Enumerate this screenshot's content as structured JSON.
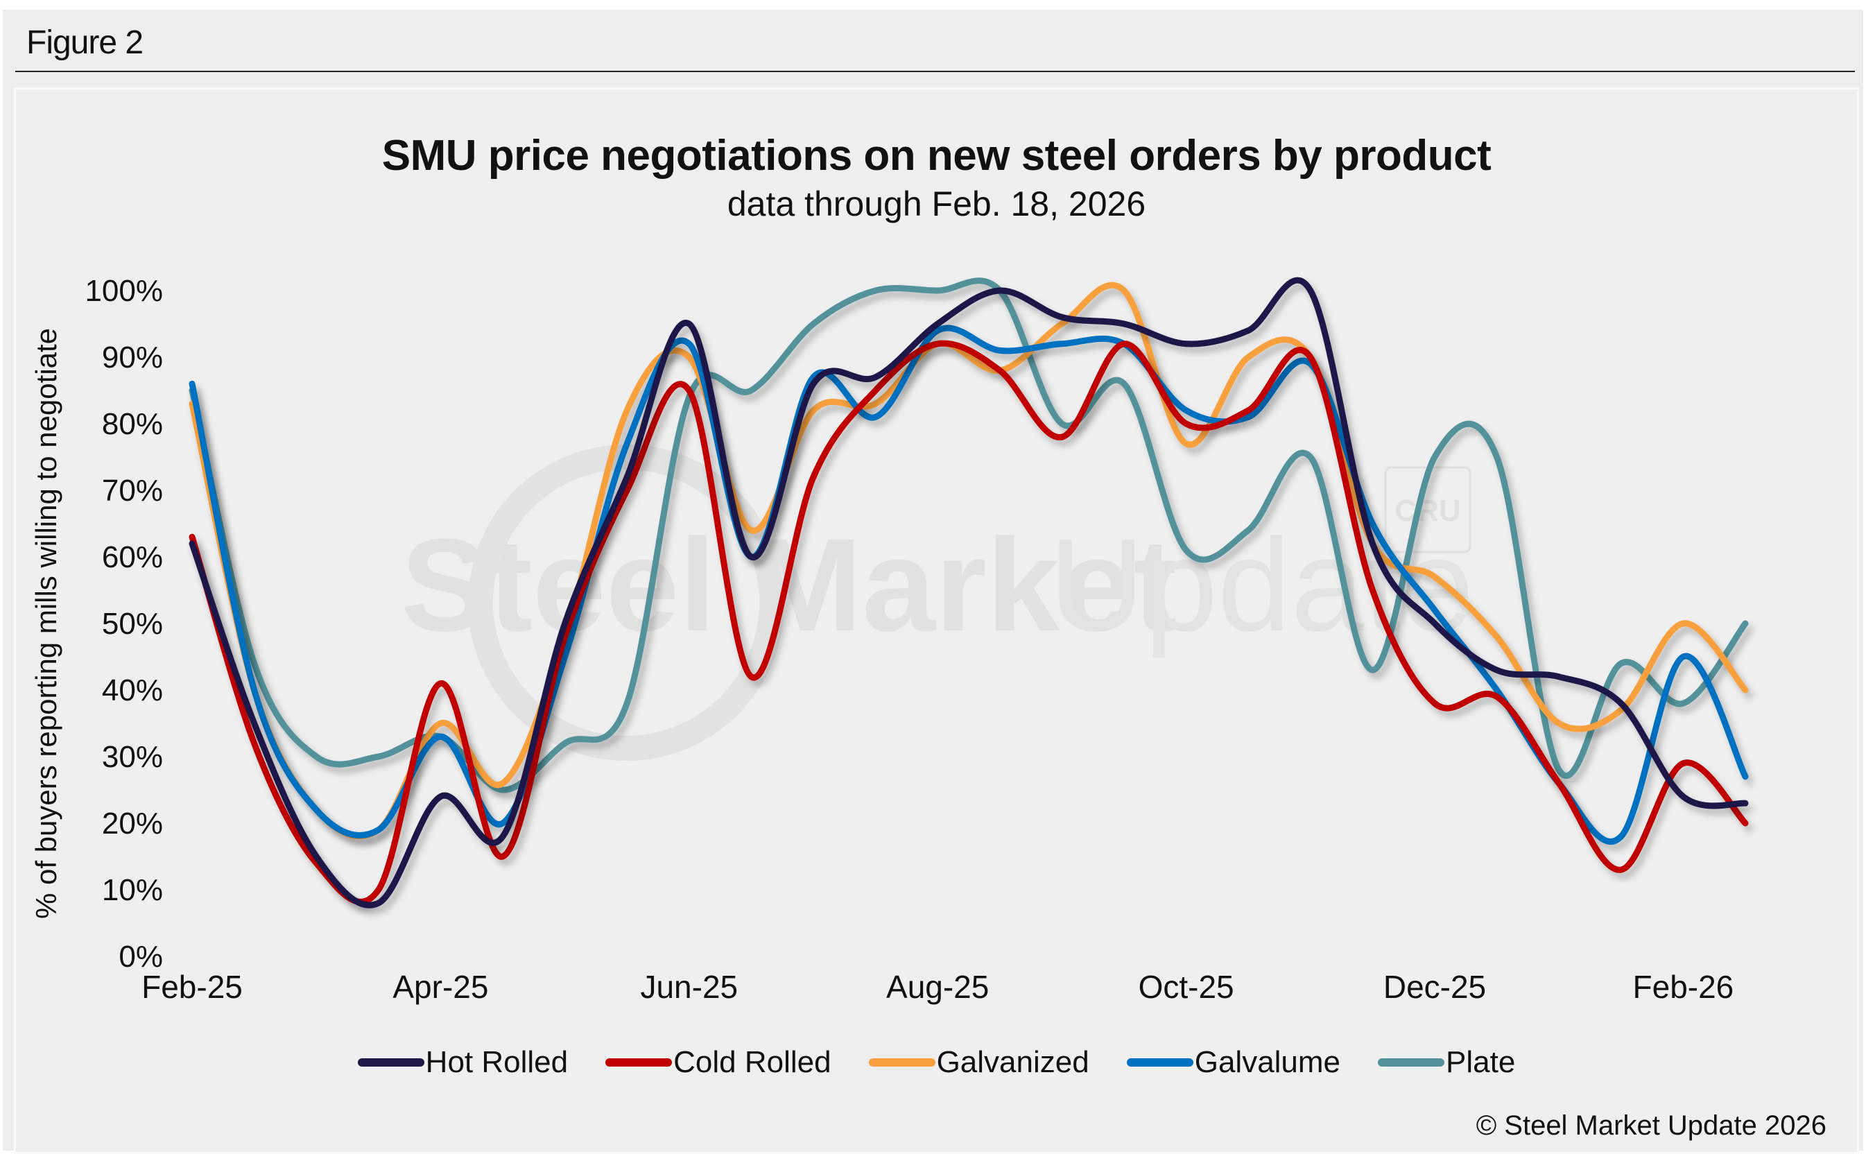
{
  "figure_label": "Figure 2",
  "copyright": "© Steel Market Update 2026",
  "watermark": {
    "brand": "Steel Market Update",
    "badge": "CRU"
  },
  "chart_data": {
    "type": "line",
    "title": "SMU price negotiations on new steel orders by product",
    "subtitle": "data through Feb. 18, 2026",
    "xlabel": "",
    "ylabel": "% of buyers reporting mills willing to negotiate",
    "ylim": [
      0,
      100
    ],
    "yticks": [
      "0%",
      "10%",
      "20%",
      "30%",
      "40%",
      "50%",
      "60%",
      "70%",
      "80%",
      "90%",
      "100%"
    ],
    "xtick_labels": [
      "Feb-25",
      "Apr-25",
      "Jun-25",
      "Aug-25",
      "Oct-25",
      "Dec-25",
      "Feb-26"
    ],
    "x_frequency": "semi-monthly (2 surveys per month), first point early Feb-25, last point Feb. 18, 2026",
    "grid": false,
    "legend_position": "bottom",
    "series": [
      {
        "name": "Hot Rolled",
        "color": "#1f1848",
        "values": [
          62,
          35,
          15,
          8,
          24,
          18,
          50,
          72,
          95,
          60,
          86,
          87,
          95,
          100,
          96,
          95,
          92,
          94,
          100,
          62,
          50,
          43,
          42,
          38,
          24,
          23
        ]
      },
      {
        "name": "Cold Rolled",
        "color": "#c00000",
        "values": [
          63,
          32,
          14,
          10,
          41,
          15,
          48,
          70,
          85,
          42,
          72,
          85,
          92,
          88,
          78,
          92,
          80,
          82,
          90,
          55,
          38,
          39,
          26,
          13,
          29,
          20
        ]
      },
      {
        "name": "Galvanized",
        "color": "#f8a03e",
        "values": [
          83,
          40,
          22,
          19,
          35,
          26,
          48,
          82,
          90,
          64,
          82,
          83,
          92,
          88,
          95,
          100,
          77,
          90,
          90,
          62,
          57,
          48,
          35,
          37,
          50,
          40
        ]
      },
      {
        "name": "Galvalume",
        "color": "#0070c0",
        "values": [
          86,
          40,
          22,
          19,
          33,
          20,
          45,
          77,
          92,
          60,
          87,
          81,
          94,
          91,
          92,
          92,
          82,
          81,
          89,
          65,
          52,
          40,
          26,
          18,
          45,
          27
        ]
      },
      {
        "name": "Plate",
        "color": "#52929a",
        "values": [
          85,
          44,
          30,
          30,
          33,
          25,
          32,
          38,
          84,
          85,
          95,
          100,
          100,
          100,
          80,
          86,
          61,
          64,
          75,
          43,
          75,
          75,
          28,
          44,
          38,
          50
        ]
      }
    ]
  }
}
